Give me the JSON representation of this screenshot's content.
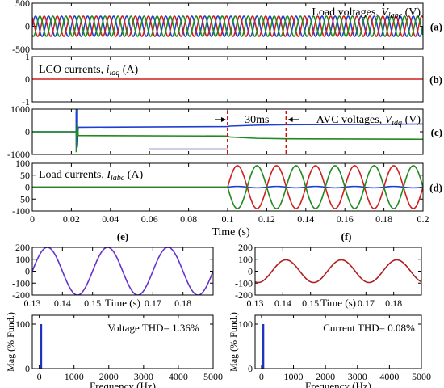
{
  "chart_data": [
    {
      "id": "a",
      "type": "line",
      "panel_letter": "(a)",
      "label": "Load voltages, ",
      "label_var": "V",
      "label_sub": "labc",
      "label_unit": " (V)",
      "xlim": [
        0,
        0.2
      ],
      "ylim": [
        -500,
        500
      ],
      "yticks": [
        "500",
        "0",
        "-500"
      ],
      "ytick_values": [
        500,
        0,
        -500
      ],
      "series": [
        {
          "color": "#1f3fd0",
          "shape": "sine",
          "amplitude": 220,
          "frequency_hz": 150,
          "phase_deg": 0
        },
        {
          "color": "#d01f1f",
          "shape": "sine",
          "amplitude": 220,
          "frequency_hz": 150,
          "phase_deg": 120
        },
        {
          "color": "#1f8a1f",
          "shape": "sine",
          "amplitude": 220,
          "frequency_hz": 150,
          "phase_deg": 240
        }
      ]
    },
    {
      "id": "b",
      "type": "line",
      "panel_letter": "(b)",
      "label": "LCO currents, ",
      "label_var": "i",
      "label_sub": "ldq",
      "label_unit": " (A)",
      "xlim": [
        0,
        0.2
      ],
      "ylim": [
        -1,
        1
      ],
      "yticks": [
        "1",
        "0",
        "-1"
      ],
      "ytick_values": [
        1,
        0,
        -1
      ],
      "series": [
        {
          "color": "#d01f1f",
          "shape": "flat",
          "points": [
            [
              0,
              0
            ],
            [
              0.2,
              0
            ]
          ]
        }
      ]
    },
    {
      "id": "c",
      "type": "line",
      "panel_letter": "(c)",
      "label": "AVC voltages, ",
      "label_var": "V",
      "label_sub": "idq",
      "label_unit": " (V)",
      "annotation": "30ms",
      "annotation_x": [
        0.1,
        0.13
      ],
      "xlim": [
        0,
        0.2
      ],
      "ylim": [
        -1000,
        1000
      ],
      "yticks": [
        "1000",
        "0",
        "-1000"
      ],
      "ytick_values": [
        1000,
        0,
        -1000
      ],
      "series": [
        {
          "color": "#1f3fd0",
          "shape": "step",
          "points": [
            [
              0,
              0
            ],
            [
              0.0225,
              0
            ],
            [
              0.0225,
              900
            ],
            [
              0.023,
              -700
            ],
            [
              0.0235,
              200
            ],
            [
              0.1,
              230
            ],
            [
              0.101,
              250
            ],
            [
              0.115,
              290
            ],
            [
              0.13,
              310
            ],
            [
              0.16,
              320
            ],
            [
              0.2,
              340
            ]
          ]
        },
        {
          "color": "#1f8a1f",
          "shape": "step",
          "points": [
            [
              0,
              0
            ],
            [
              0.0225,
              0
            ],
            [
              0.0225,
              -900
            ],
            [
              0.023,
              400
            ],
            [
              0.0235,
              -170
            ],
            [
              0.1,
              -190
            ],
            [
              0.101,
              -230
            ],
            [
              0.115,
              -290
            ],
            [
              0.13,
              -310
            ],
            [
              0.16,
              -320
            ],
            [
              0.2,
              -330
            ]
          ]
        }
      ]
    },
    {
      "id": "d",
      "type": "line",
      "panel_letter": "(d)",
      "label": "Load currents, ",
      "label_var": "I",
      "label_sub": "labc",
      "label_unit": " (A)",
      "xlim": [
        0,
        0.2
      ],
      "ylim": [
        -100,
        100
      ],
      "yticks": [
        "100",
        "50",
        "0",
        "-50",
        "-100"
      ],
      "ytick_values": [
        100,
        50,
        0,
        -50,
        -100
      ],
      "xlabel": "Time (s)",
      "xticks": [
        "0",
        "0.02",
        "0.04",
        "0.06",
        "0.08",
        "0.1",
        "0.12",
        "0.14",
        "0.16",
        "0.18",
        "0.2"
      ],
      "xtick_values": [
        0,
        0.02,
        0.04,
        0.06,
        0.08,
        0.1,
        0.12,
        0.14,
        0.16,
        0.18,
        0.2
      ],
      "series": [
        {
          "color": "#1f3fd0",
          "shape": "sine_after",
          "start": 0.1,
          "amplitude": 3,
          "frequency_hz": 50,
          "phase_deg": 0
        },
        {
          "color": "#d01f1f",
          "shape": "sine_after",
          "start": 0.1,
          "amplitude": 90,
          "frequency_hz": 50,
          "phase_deg": 0
        },
        {
          "color": "#1f8a1f",
          "shape": "sine_after",
          "start": 0.1,
          "amplitude": 90,
          "frequency_hz": 50,
          "phase_deg": 180
        }
      ]
    },
    {
      "id": "e_time",
      "type": "line",
      "panel_letter": "(e)",
      "xlabel": "Time (s)",
      "xlim": [
        0.13,
        0.19
      ],
      "ylim": [
        -200,
        200
      ],
      "yticks": [
        "200",
        "100",
        "0",
        "-100",
        "-200"
      ],
      "ytick_values": [
        200,
        100,
        0,
        -100,
        -200
      ],
      "xticks": [
        "0.13",
        "0.14",
        "0.15",
        "0.17",
        "0.18"
      ],
      "xtick_values": [
        0.13,
        0.14,
        0.15,
        0.17,
        0.18
      ],
      "series": [
        {
          "color": "#6633cc",
          "shape": "sine",
          "amplitude": 200,
          "frequency_hz": 50,
          "phase_deg": 180
        }
      ]
    },
    {
      "id": "e_fft",
      "type": "bar",
      "ylabel": "Mag (% Fund.)",
      "xlabel": "Frequency (Hz)",
      "annotation": "Voltage THD= 1.36%",
      "xlim": [
        -200,
        5000
      ],
      "ylim": [
        0,
        120
      ],
      "yticks": [
        "100",
        "0"
      ],
      "ytick_values": [
        100,
        0
      ],
      "xticks": [
        "0",
        "1000",
        "2000",
        "3000",
        "4000",
        "5000"
      ],
      "xtick_values": [
        0,
        1000,
        2000,
        3000,
        4000,
        5000
      ],
      "categories": [
        50
      ],
      "values": [
        100
      ],
      "bar_color": "#2233bb"
    },
    {
      "id": "f_time",
      "type": "line",
      "panel_letter": "(f)",
      "xlabel": "Time (s)",
      "xlim": [
        0.13,
        0.19
      ],
      "ylim": [
        -200,
        200
      ],
      "yticks": [
        "200",
        "100",
        "0",
        "-100",
        "-200"
      ],
      "ytick_values": [
        200,
        100,
        0,
        -100,
        -200
      ],
      "xticks": [
        "0.13",
        "0.14",
        "0.15",
        "0.17",
        "0.18"
      ],
      "xtick_values": [
        0.13,
        0.14,
        0.15,
        0.17,
        0.18
      ],
      "series": [
        {
          "color": "#b01e1e",
          "shape": "sine",
          "amplitude": 95,
          "frequency_hz": 50,
          "phase_deg": 70
        }
      ]
    },
    {
      "id": "f_fft",
      "type": "bar",
      "ylabel": "Mag (% Fund.)",
      "xlabel": "Frequency (Hz)",
      "annotation": "Current THD= 0.08%",
      "xlim": [
        -200,
        5000
      ],
      "ylim": [
        0,
        120
      ],
      "yticks": [
        "100",
        "0"
      ],
      "ytick_values": [
        100,
        0
      ],
      "xticks": [
        "0",
        "1000",
        "2000",
        "3000",
        "4000",
        "5000"
      ],
      "xtick_values": [
        0,
        1000,
        2000,
        3000,
        4000,
        5000
      ],
      "categories": [
        50
      ],
      "values": [
        100
      ],
      "bar_color": "#2233bb"
    }
  ]
}
